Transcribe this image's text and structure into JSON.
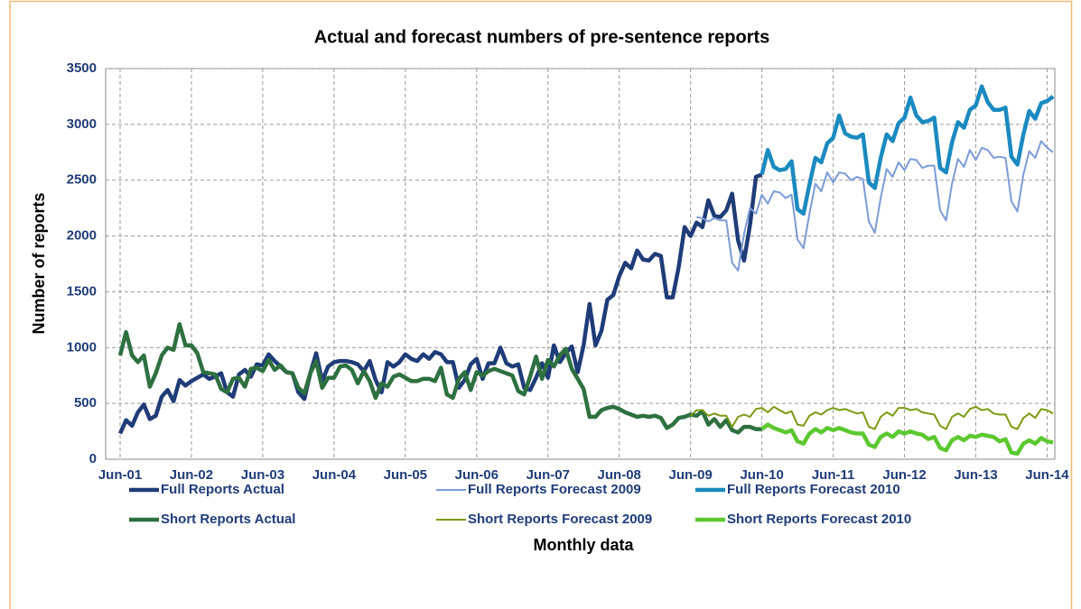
{
  "chart_data": {
    "type": "line",
    "title": "Actual and forecast numbers of pre-sentence reports",
    "y_label": "Number of reports",
    "x_label": "Monthly data",
    "ylim": [
      0,
      3500
    ],
    "yticks": [
      0,
      500,
      1000,
      1500,
      2000,
      2500,
      3000,
      3500
    ],
    "grid": true,
    "categories": [
      "Jun-01",
      null,
      null,
      null,
      null,
      null,
      null,
      null,
      null,
      null,
      null,
      null,
      "Jun-02",
      null,
      null,
      null,
      null,
      null,
      null,
      null,
      null,
      null,
      null,
      null,
      "Jun-03",
      null,
      null,
      null,
      null,
      null,
      null,
      null,
      null,
      null,
      null,
      null,
      "Jun-04",
      null,
      null,
      null,
      null,
      null,
      null,
      null,
      null,
      null,
      null,
      null,
      "Jun-05",
      null,
      null,
      null,
      null,
      null,
      null,
      null,
      null,
      null,
      null,
      null,
      "Jun-06",
      null,
      null,
      null,
      null,
      null,
      null,
      null,
      null,
      null,
      null,
      null,
      "Jun-07",
      null,
      null,
      null,
      null,
      null,
      null,
      null,
      null,
      null,
      null,
      null,
      "Jun-08",
      null,
      null,
      null,
      null,
      null,
      null,
      null,
      null,
      null,
      null,
      null,
      "Jun-09",
      null,
      null,
      null,
      null,
      null,
      null,
      null,
      null,
      null,
      null,
      null,
      "Jun-10",
      null,
      null,
      null,
      null,
      null,
      null,
      null,
      null,
      null,
      null,
      null,
      "Jun-11",
      null,
      null,
      null,
      null,
      null,
      null,
      null,
      null,
      null,
      null,
      null,
      "Jun-12",
      null,
      null,
      null,
      null,
      null,
      null,
      null,
      null,
      null,
      null,
      null,
      "Jun-13",
      null,
      null,
      null,
      null,
      null,
      null,
      null,
      null,
      null,
      null,
      null,
      "Jun-14",
      null
    ],
    "series": [
      {
        "name": "Full Reports Actual",
        "color": "#1f3c78",
        "width": 4.5,
        "values": [
          230,
          350,
          300,
          420,
          490,
          360,
          390,
          560,
          620,
          520,
          710,
          660,
          700,
          730,
          760,
          720,
          740,
          770,
          600,
          560,
          760,
          800,
          740,
          850,
          840,
          940,
          880,
          830,
          780,
          770,
          600,
          540,
          770,
          950,
          700,
          830,
          870,
          880,
          880,
          870,
          850,
          790,
          880,
          710,
          600,
          870,
          830,
          870,
          940,
          900,
          880,
          940,
          900,
          960,
          940,
          870,
          870,
          640,
          710,
          850,
          900,
          720,
          860,
          860,
          1000,
          860,
          830,
          850,
          640,
          620,
          730,
          860,
          730,
          1020,
          870,
          950,
          1010,
          780,
          1020,
          1390,
          1020,
          1150,
          1430,
          1470,
          1640,
          1760,
          1710,
          1870,
          1790,
          1780,
          1840,
          1820,
          1450,
          1450,
          1720,
          2080,
          2000,
          2120,
          2080,
          2320,
          2180,
          2170,
          2230,
          2380,
          1960,
          1780,
          2100,
          2530,
          2550,
          null,
          null,
          null,
          null,
          null,
          null,
          null,
          null,
          null,
          null,
          null,
          null,
          null,
          null,
          null,
          null,
          null,
          null,
          null,
          null,
          null,
          null,
          null,
          null,
          null,
          null,
          null,
          null,
          null,
          null,
          null,
          null,
          null,
          null,
          null,
          null,
          null,
          null,
          null,
          null,
          null,
          null,
          null,
          null,
          null,
          null,
          null,
          null,
          null
        ]
      },
      {
        "name": "Full Reports Forecast 2009",
        "color": "#7b9bd6",
        "width": 2,
        "values": [
          null,
          null,
          null,
          null,
          null,
          null,
          null,
          null,
          null,
          null,
          null,
          null,
          null,
          null,
          null,
          null,
          null,
          null,
          null,
          null,
          null,
          null,
          null,
          null,
          null,
          null,
          null,
          null,
          null,
          null,
          null,
          null,
          null,
          null,
          null,
          null,
          null,
          null,
          null,
          null,
          null,
          null,
          null,
          null,
          null,
          null,
          null,
          null,
          null,
          null,
          null,
          null,
          null,
          null,
          null,
          null,
          null,
          null,
          null,
          null,
          null,
          null,
          null,
          null,
          null,
          null,
          null,
          null,
          null,
          null,
          null,
          null,
          null,
          null,
          null,
          null,
          null,
          null,
          null,
          null,
          null,
          null,
          null,
          null,
          null,
          null,
          null,
          null,
          null,
          null,
          null,
          null,
          null,
          null,
          null,
          null,
          null,
          2170,
          2160,
          2130,
          2160,
          2140,
          2140,
          1760,
          1690,
          2020,
          2250,
          2200,
          2370,
          2290,
          2400,
          2390,
          2340,
          2370,
          1970,
          1890,
          2200,
          2470,
          2400,
          2570,
          2480,
          2570,
          2560,
          2500,
          2530,
          2510,
          2130,
          2030,
          2340,
          2600,
          2530,
          2660,
          2590,
          2690,
          2680,
          2610,
          2630,
          2630,
          2230,
          2140,
          2470,
          2690,
          2620,
          2770,
          2680,
          2790,
          2770,
          2700,
          2710,
          2700,
          2310,
          2220,
          2550,
          2760,
          2700,
          2850,
          2790,
          2750
        ]
      },
      {
        "name": "Full Reports Forecast 2010",
        "color": "#1b8ac0",
        "width": 4.5,
        "values": [
          null,
          null,
          null,
          null,
          null,
          null,
          null,
          null,
          null,
          null,
          null,
          null,
          null,
          null,
          null,
          null,
          null,
          null,
          null,
          null,
          null,
          null,
          null,
          null,
          null,
          null,
          null,
          null,
          null,
          null,
          null,
          null,
          null,
          null,
          null,
          null,
          null,
          null,
          null,
          null,
          null,
          null,
          null,
          null,
          null,
          null,
          null,
          null,
          null,
          null,
          null,
          null,
          null,
          null,
          null,
          null,
          null,
          null,
          null,
          null,
          null,
          null,
          null,
          null,
          null,
          null,
          null,
          null,
          null,
          null,
          null,
          null,
          null,
          null,
          null,
          null,
          null,
          null,
          null,
          null,
          null,
          null,
          null,
          null,
          null,
          null,
          null,
          null,
          null,
          null,
          null,
          null,
          null,
          null,
          null,
          null,
          null,
          null,
          null,
          null,
          null,
          null,
          null,
          null,
          null,
          null,
          null,
          null,
          2550,
          2770,
          2620,
          2590,
          2600,
          2670,
          2240,
          2200,
          2460,
          2700,
          2660,
          2830,
          2880,
          3080,
          2920,
          2890,
          2880,
          2910,
          2480,
          2430,
          2700,
          2910,
          2850,
          3010,
          3060,
          3240,
          3080,
          3020,
          3030,
          3060,
          2610,
          2570,
          2840,
          3020,
          2970,
          3130,
          3170,
          3340,
          3200,
          3130,
          3130,
          3150,
          2710,
          2640,
          2910,
          3120,
          3050,
          3190,
          3210,
          3250
        ]
      },
      {
        "name": "Short Reports Actual",
        "color": "#2e7040",
        "width": 4.5,
        "values": [
          930,
          1140,
          930,
          870,
          930,
          650,
          770,
          930,
          1000,
          980,
          1210,
          1020,
          1020,
          950,
          780,
          770,
          760,
          630,
          600,
          720,
          730,
          650,
          810,
          820,
          790,
          890,
          800,
          840,
          780,
          770,
          640,
          590,
          770,
          880,
          640,
          730,
          730,
          830,
          840,
          800,
          680,
          790,
          700,
          550,
          680,
          650,
          740,
          760,
          730,
          700,
          700,
          720,
          720,
          700,
          820,
          580,
          550,
          720,
          780,
          620,
          780,
          750,
          790,
          810,
          790,
          770,
          750,
          610,
          580,
          740,
          920,
          720,
          890,
          830,
          930,
          990,
          810,
          720,
          630,
          380,
          380,
          440,
          460,
          470,
          450,
          420,
          400,
          380,
          390,
          380,
          390,
          370,
          280,
          310,
          370,
          380,
          400,
          390,
          430,
          310,
          360,
          290,
          350,
          260,
          240,
          290,
          290,
          270,
          270,
          null,
          null,
          null,
          null,
          null,
          null,
          null,
          null,
          null,
          null,
          null,
          null,
          null,
          null,
          null,
          null,
          null,
          null,
          null,
          null,
          null,
          null,
          null,
          null,
          null,
          null,
          null,
          null,
          null,
          null,
          null,
          null,
          null,
          null,
          null,
          null,
          null,
          null,
          null,
          null,
          null,
          null,
          null,
          null,
          null,
          null,
          null,
          null,
          null
        ]
      },
      {
        "name": "Short Reports Forecast 2009",
        "color": "#7a9a10",
        "width": 2,
        "values": [
          null,
          null,
          null,
          null,
          null,
          null,
          null,
          null,
          null,
          null,
          null,
          null,
          null,
          null,
          null,
          null,
          null,
          null,
          null,
          null,
          null,
          null,
          null,
          null,
          null,
          null,
          null,
          null,
          null,
          null,
          null,
          null,
          null,
          null,
          null,
          null,
          null,
          null,
          null,
          null,
          null,
          null,
          null,
          null,
          null,
          null,
          null,
          null,
          null,
          null,
          null,
          null,
          null,
          null,
          null,
          null,
          null,
          null,
          null,
          null,
          null,
          null,
          null,
          null,
          null,
          null,
          null,
          null,
          null,
          null,
          null,
          null,
          null,
          null,
          null,
          null,
          null,
          null,
          null,
          null,
          null,
          null,
          null,
          null,
          null,
          null,
          null,
          null,
          null,
          null,
          null,
          null,
          null,
          null,
          null,
          null,
          390,
          440,
          440,
          390,
          410,
          390,
          390,
          290,
          380,
          400,
          380,
          450,
          460,
          420,
          470,
          440,
          410,
          430,
          310,
          300,
          390,
          420,
          400,
          440,
          460,
          440,
          450,
          430,
          410,
          420,
          290,
          270,
          380,
          420,
          390,
          460,
          460,
          440,
          450,
          420,
          410,
          400,
          300,
          270,
          380,
          410,
          380,
          450,
          470,
          440,
          450,
          410,
          400,
          400,
          290,
          270,
          370,
          410,
          370,
          450,
          440,
          410
        ]
      },
      {
        "name": "Short Reports Forecast 2010",
        "color": "#5cc830",
        "width": 4.5,
        "values": [
          null,
          null,
          null,
          null,
          null,
          null,
          null,
          null,
          null,
          null,
          null,
          null,
          null,
          null,
          null,
          null,
          null,
          null,
          null,
          null,
          null,
          null,
          null,
          null,
          null,
          null,
          null,
          null,
          null,
          null,
          null,
          null,
          null,
          null,
          null,
          null,
          null,
          null,
          null,
          null,
          null,
          null,
          null,
          null,
          null,
          null,
          null,
          null,
          null,
          null,
          null,
          null,
          null,
          null,
          null,
          null,
          null,
          null,
          null,
          null,
          null,
          null,
          null,
          null,
          null,
          null,
          null,
          null,
          null,
          null,
          null,
          null,
          null,
          null,
          null,
          null,
          null,
          null,
          null,
          null,
          null,
          null,
          null,
          null,
          null,
          null,
          null,
          null,
          null,
          null,
          null,
          null,
          null,
          null,
          null,
          null,
          null,
          null,
          null,
          null,
          null,
          null,
          null,
          null,
          null,
          null,
          null,
          null,
          270,
          310,
          280,
          260,
          240,
          260,
          160,
          140,
          230,
          270,
          240,
          280,
          260,
          280,
          260,
          240,
          230,
          230,
          130,
          110,
          200,
          230,
          200,
          250,
          230,
          250,
          230,
          220,
          180,
          200,
          100,
          80,
          170,
          200,
          170,
          210,
          200,
          220,
          210,
          200,
          160,
          180,
          60,
          50,
          140,
          170,
          140,
          190,
          160,
          150
        ]
      }
    ]
  }
}
